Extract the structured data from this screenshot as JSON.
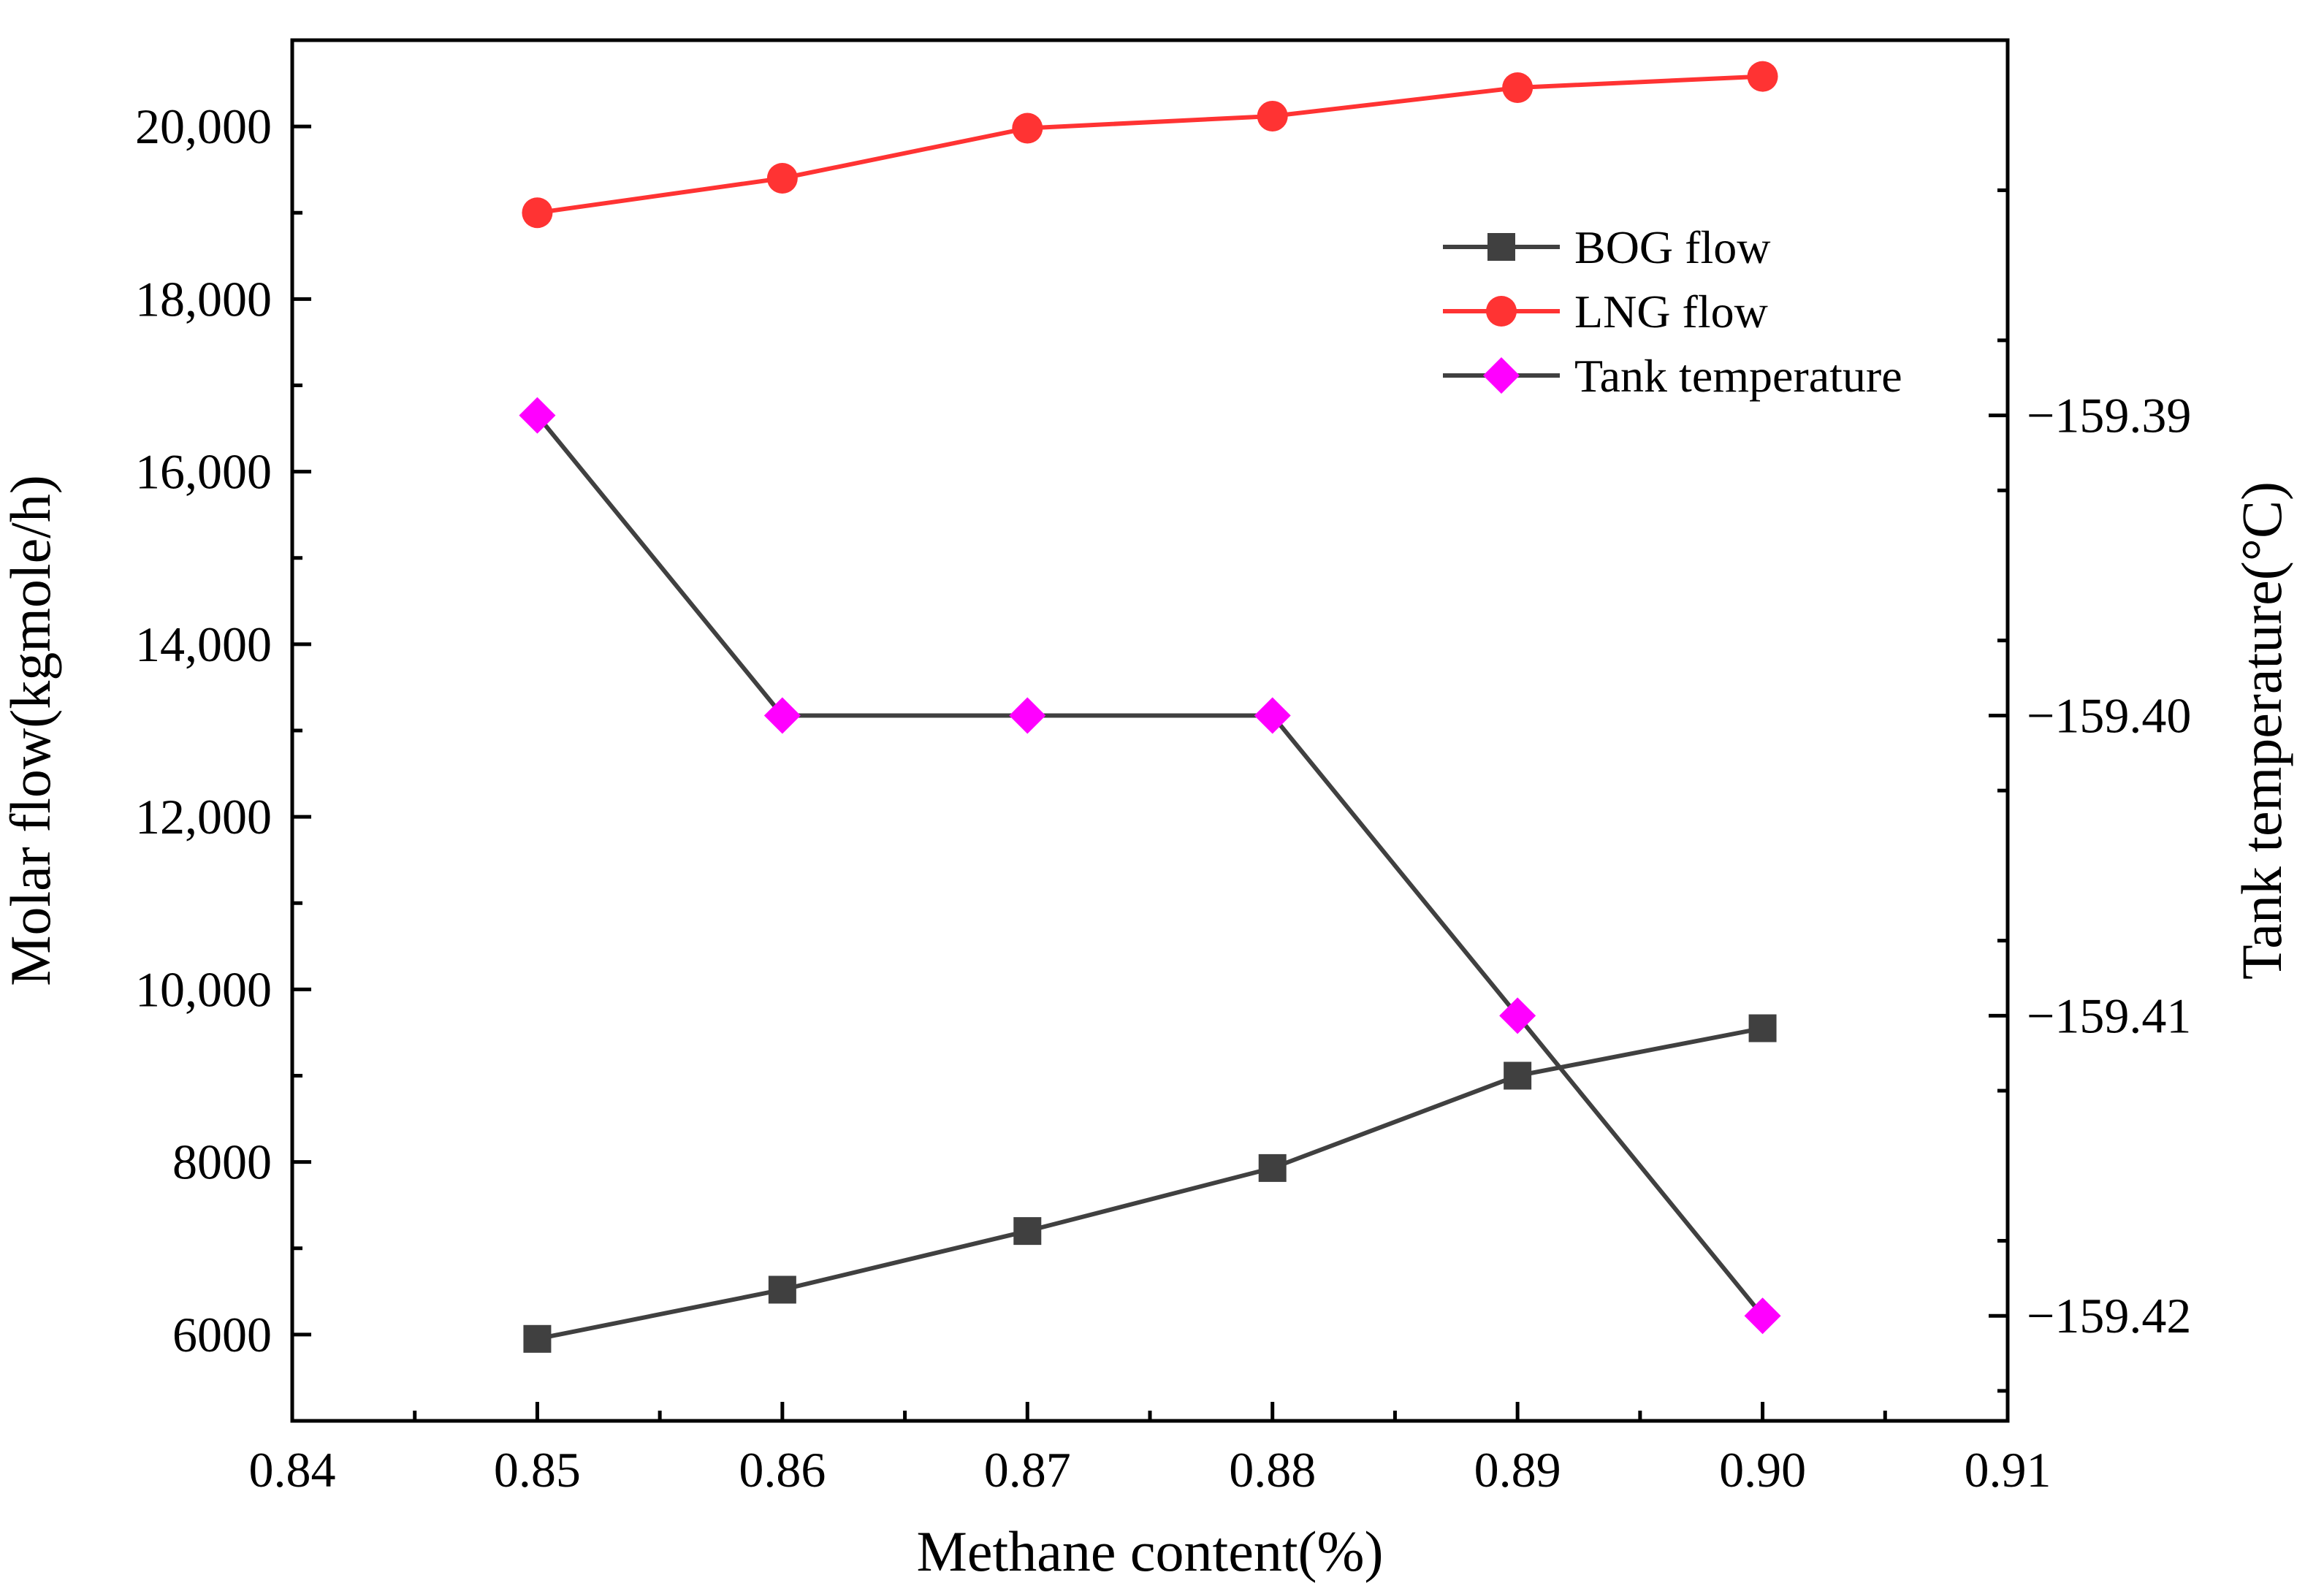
{
  "chart_data": {
    "type": "line",
    "title": "",
    "xlabel": "Methane content(%)",
    "ylabel": "Molar flow(kgmole/h)",
    "y2label": "Tank temperature(°C)",
    "x": [
      0.85,
      0.86,
      0.87,
      0.88,
      0.89,
      0.9
    ],
    "xlim": [
      0.84,
      0.91
    ],
    "ylim": [
      5000,
      21000
    ],
    "y2lim": [
      -159.4235,
      -159.3775
    ],
    "x_ticks": [
      0.84,
      0.85,
      0.86,
      0.87,
      0.88,
      0.89,
      0.9,
      0.91
    ],
    "x_tick_labels": [
      "0.84",
      "0.85",
      "0.86",
      "0.87",
      "0.88",
      "0.89",
      "0.90",
      "0.91"
    ],
    "y_ticks": [
      6000,
      8000,
      10000,
      12000,
      14000,
      16000,
      18000,
      20000
    ],
    "y_tick_labels": [
      "6000",
      "8000",
      "10,000",
      "12,000",
      "14,000",
      "16,000",
      "18,000",
      "20,000"
    ],
    "y2_ticks": [
      -159.39,
      -159.4,
      -159.41,
      -159.42
    ],
    "y2_tick_labels": [
      "−159.39",
      "−159.40",
      "−159.41",
      "−159.42"
    ],
    "legend_position": "top-right",
    "series": [
      {
        "name": "BOG flow",
        "axis": "left",
        "marker": "square",
        "color": "#404040",
        "values": [
          5950,
          6520,
          7200,
          7930,
          9000,
          9550
        ]
      },
      {
        "name": "LNG flow",
        "axis": "left",
        "marker": "circle",
        "color": "#ff3333",
        "values": [
          19000,
          19400,
          19980,
          20120,
          20450,
          20580
        ]
      },
      {
        "name": "Tank temperature",
        "axis": "right",
        "marker": "diamond",
        "color": "#ff00ff",
        "line_color": "#404040",
        "values": [
          -159.39,
          -159.4,
          -159.4,
          -159.4,
          -159.41,
          -159.42
        ]
      }
    ]
  }
}
